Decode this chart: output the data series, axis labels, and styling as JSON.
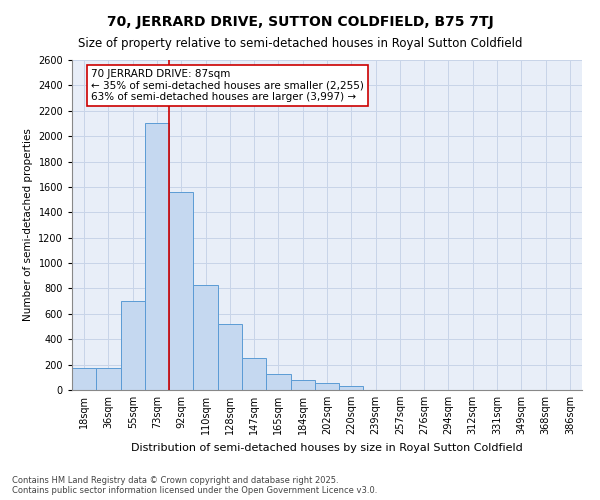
{
  "title": "70, JERRARD DRIVE, SUTTON COLDFIELD, B75 7TJ",
  "subtitle": "Size of property relative to semi-detached houses in Royal Sutton Coldfield",
  "xlabel": "Distribution of semi-detached houses by size in Royal Sutton Coldfield",
  "ylabel": "Number of semi-detached properties",
  "categories": [
    "18sqm",
    "36sqm",
    "55sqm",
    "73sqm",
    "92sqm",
    "110sqm",
    "128sqm",
    "147sqm",
    "165sqm",
    "184sqm",
    "202sqm",
    "220sqm",
    "239sqm",
    "257sqm",
    "276sqm",
    "294sqm",
    "312sqm",
    "331sqm",
    "349sqm",
    "368sqm",
    "386sqm"
  ],
  "values": [
    175,
    175,
    700,
    2100,
    1560,
    830,
    520,
    250,
    130,
    80,
    55,
    30,
    0,
    0,
    0,
    0,
    0,
    0,
    0,
    0,
    0
  ],
  "bar_color": "#c5d8f0",
  "bar_edge_color": "#5b9bd5",
  "vline_index": 4,
  "vline_color": "#cc0000",
  "annotation_line1": "70 JERRARD DRIVE: 87sqm",
  "annotation_line2": "← 35% of semi-detached houses are smaller (2,255)",
  "annotation_line3": "63% of semi-detached houses are larger (3,997) →",
  "annotation_box_color": "#cc0000",
  "ylim": [
    0,
    2600
  ],
  "yticks": [
    0,
    200,
    400,
    600,
    800,
    1000,
    1200,
    1400,
    1600,
    1800,
    2000,
    2200,
    2400,
    2600
  ],
  "grid_color": "#c8d4e8",
  "background_color": "#e8eef8",
  "footer_text": "Contains HM Land Registry data © Crown copyright and database right 2025.\nContains public sector information licensed under the Open Government Licence v3.0.",
  "title_fontsize": 10,
  "subtitle_fontsize": 8.5,
  "xlabel_fontsize": 8,
  "ylabel_fontsize": 7.5,
  "tick_fontsize": 7,
  "annotation_fontsize": 7.5,
  "footer_fontsize": 6
}
